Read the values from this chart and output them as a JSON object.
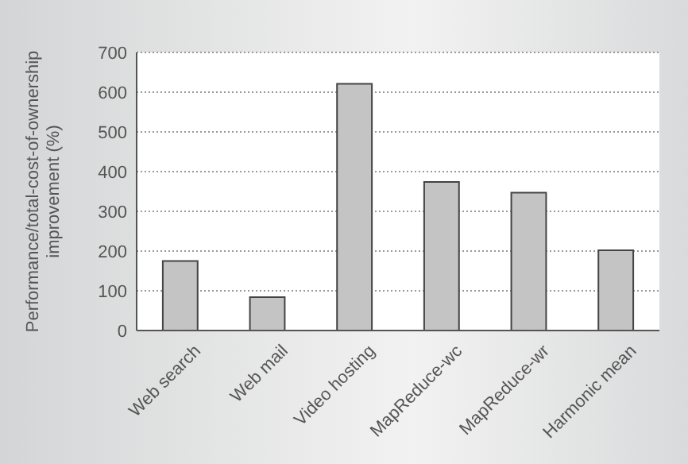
{
  "chart_data": {
    "type": "bar",
    "ylabel": "Performance/total-cost-of-ownership\nimprovement (%)",
    "categories": [
      "Web search",
      "Web mail",
      "Video hosting",
      "MapReduce-wc",
      "MapReduce-wr",
      "Harmonic mean"
    ],
    "values": [
      175,
      84,
      621,
      374,
      347,
      202
    ],
    "color": "#c4c4c4",
    "ylim": [
      0,
      700
    ],
    "yticks": [
      0,
      100,
      200,
      300,
      400,
      500,
      600,
      700
    ],
    "grid": "y"
  }
}
